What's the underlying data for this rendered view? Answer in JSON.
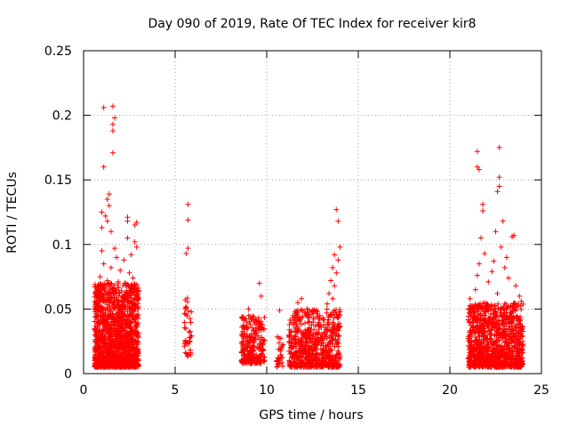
{
  "chart_data": {
    "type": "scatter",
    "title": "Day 090 of 2019, Rate Of TEC Index for receiver kir8",
    "xlabel": "GPS time / hours",
    "ylabel": "ROTI / TECUs",
    "xlim": [
      0,
      25
    ],
    "ylim": [
      0,
      0.25
    ],
    "x_ticks": [
      0,
      5,
      10,
      15,
      20,
      25
    ],
    "x_tick_labels": [
      "0",
      "5",
      "10",
      "15",
      "20",
      "25"
    ],
    "y_ticks": [
      0,
      0.05,
      0.1,
      0.15,
      0.2,
      0.25
    ],
    "y_tick_labels": [
      "0",
      "0.05",
      "0.1",
      "0.15",
      "0.2",
      "0.25"
    ],
    "grid": true,
    "marker": "+",
    "marker_color": "#ff0000",
    "series": [
      {
        "name": "ROTI",
        "clusters": [
          {
            "x_range": [
              0.6,
              3.0
            ],
            "y_range": [
              0.005,
              0.07
            ],
            "count": 1400,
            "extra": [
              [
                1.1,
                0.206
              ],
              [
                1.6,
                0.207
              ],
              [
                1.7,
                0.198
              ],
              [
                1.6,
                0.193
              ],
              [
                1.6,
                0.188
              ],
              [
                1.6,
                0.171
              ],
              [
                1.1,
                0.16
              ],
              [
                1.4,
                0.139
              ],
              [
                1.3,
                0.135
              ],
              [
                1.4,
                0.13
              ],
              [
                1.0,
                0.125
              ],
              [
                1.2,
                0.122
              ],
              [
                1.3,
                0.118
              ],
              [
                1.0,
                0.113
              ],
              [
                2.4,
                0.121
              ],
              [
                2.4,
                0.118
              ],
              [
                2.9,
                0.117
              ],
              [
                2.8,
                0.115
              ],
              [
                1.5,
                0.11
              ],
              [
                2.4,
                0.105
              ],
              [
                2.8,
                0.102
              ],
              [
                2.9,
                0.098
              ],
              [
                1.7,
                0.097
              ],
              [
                1.0,
                0.095
              ],
              [
                1.8,
                0.09
              ],
              [
                2.6,
                0.092
              ],
              [
                2.2,
                0.088
              ],
              [
                1.1,
                0.085
              ],
              [
                1.5,
                0.082
              ],
              [
                2.0,
                0.08
              ],
              [
                2.5,
                0.078
              ],
              [
                0.9,
                0.075
              ],
              [
                1.3,
                0.072
              ],
              [
                2.7,
                0.074
              ],
              [
                1.9,
                0.071
              ],
              [
                0.8,
                0.066
              ]
            ]
          },
          {
            "x_range": [
              5.5,
              5.9
            ],
            "y_range": [
              0.012,
              0.06
            ],
            "count": 40,
            "extra": [
              [
                5.7,
                0.131
              ],
              [
                5.7,
                0.119
              ],
              [
                5.7,
                0.097
              ],
              [
                5.6,
                0.093
              ]
            ]
          },
          {
            "x_range": [
              8.6,
              9.9
            ],
            "y_range": [
              0.008,
              0.045
            ],
            "count": 260,
            "extra": [
              [
                9.6,
                0.07
              ],
              [
                9.7,
                0.06
              ],
              [
                9.0,
                0.05
              ]
            ]
          },
          {
            "x_range": [
              10.5,
              10.9
            ],
            "y_range": [
              0.005,
              0.03
            ],
            "count": 30,
            "extra": [
              [
                10.7,
                0.049
              ]
            ]
          },
          {
            "x_range": [
              11.2,
              14.0
            ],
            "y_range": [
              0.005,
              0.05
            ],
            "count": 650,
            "extra": [
              [
                13.8,
                0.127
              ],
              [
                13.9,
                0.118
              ],
              [
                14.0,
                0.098
              ],
              [
                13.7,
                0.092
              ],
              [
                13.9,
                0.088
              ],
              [
                13.6,
                0.082
              ],
              [
                13.8,
                0.078
              ],
              [
                13.5,
                0.072
              ],
              [
                13.7,
                0.068
              ],
              [
                13.4,
                0.062
              ],
              [
                13.6,
                0.058
              ],
              [
                11.9,
                0.058
              ],
              [
                11.7,
                0.055
              ],
              [
                12.2,
                0.05
              ],
              [
                13.3,
                0.054
              ]
            ]
          },
          {
            "x_range": [
              21.0,
              24.0
            ],
            "y_range": [
              0.005,
              0.055
            ],
            "count": 1100,
            "extra": [
              [
                22.7,
                0.175
              ],
              [
                21.5,
                0.172
              ],
              [
                21.5,
                0.16
              ],
              [
                21.6,
                0.158
              ],
              [
                22.7,
                0.152
              ],
              [
                22.7,
                0.145
              ],
              [
                22.6,
                0.141
              ],
              [
                21.8,
                0.131
              ],
              [
                21.8,
                0.126
              ],
              [
                22.9,
                0.118
              ],
              [
                22.5,
                0.11
              ],
              [
                23.4,
                0.106
              ],
              [
                23.5,
                0.107
              ],
              [
                21.7,
                0.105
              ],
              [
                22.8,
                0.098
              ],
              [
                21.9,
                0.093
              ],
              [
                23.1,
                0.09
              ],
              [
                22.4,
                0.087
              ],
              [
                21.6,
                0.085
              ],
              [
                23.0,
                0.082
              ],
              [
                22.3,
                0.079
              ],
              [
                21.5,
                0.076
              ],
              [
                23.2,
                0.074
              ],
              [
                22.1,
                0.071
              ],
              [
                23.6,
                0.068
              ],
              [
                21.4,
                0.065
              ],
              [
                22.6,
                0.062
              ],
              [
                23.8,
                0.06
              ],
              [
                21.1,
                0.058
              ],
              [
                23.9,
                0.056
              ]
            ]
          }
        ]
      }
    ]
  }
}
